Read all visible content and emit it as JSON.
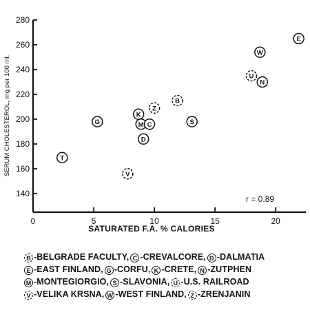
{
  "chart_data": {
    "type": "scatter",
    "title": "",
    "xlabel": "SATURATED F.A. % CALORIES",
    "ylabel": "SERUM CHOLESTEROL, mg per 100 ml.",
    "xlim": [
      0,
      23
    ],
    "ylim": [
      125,
      280
    ],
    "xticks": [
      0,
      5,
      10,
      15,
      20
    ],
    "yticks": [
      140,
      160,
      180,
      200,
      220,
      240,
      260,
      280
    ],
    "grid": false,
    "annotation": "r = 0.89",
    "points": [
      {
        "code": "T",
        "x": 2.4,
        "y": 169,
        "dashed": false
      },
      {
        "code": "G",
        "x": 5.3,
        "y": 198,
        "dashed": false
      },
      {
        "code": "V",
        "x": 7.8,
        "y": 156,
        "dashed": true
      },
      {
        "code": "K",
        "x": 8.7,
        "y": 204,
        "dashed": false
      },
      {
        "code": "M",
        "x": 8.9,
        "y": 196,
        "dashed": false
      },
      {
        "code": "D",
        "x": 9.1,
        "y": 184,
        "dashed": false
      },
      {
        "code": "C",
        "x": 9.6,
        "y": 196,
        "dashed": false
      },
      {
        "code": "Z",
        "x": 10.0,
        "y": 209,
        "dashed": true
      },
      {
        "code": "B",
        "x": 11.9,
        "y": 215,
        "dashed": true
      },
      {
        "code": "S",
        "x": 13.1,
        "y": 198,
        "dashed": false
      },
      {
        "code": "U",
        "x": 18.0,
        "y": 235,
        "dashed": true
      },
      {
        "code": "W",
        "x": 18.7,
        "y": 254,
        "dashed": false
      },
      {
        "code": "N",
        "x": 18.9,
        "y": 230,
        "dashed": false
      },
      {
        "code": "E",
        "x": 21.9,
        "y": 265,
        "dashed": false
      }
    ]
  },
  "legend": {
    "rows": [
      [
        {
          "code": "B",
          "name": "-BELGRADE FACULTY,",
          "dashed": true
        },
        {
          "code": "C",
          "name": "-CREVALCORE,",
          "dashed": false
        },
        {
          "code": "D",
          "name": "-DALMATIA",
          "dashed": false
        }
      ],
      [
        {
          "code": "E",
          "name": "-EAST FINLAND,",
          "dashed": false
        },
        {
          "code": "G",
          "name": "-CORFU,",
          "dashed": false
        },
        {
          "code": "K",
          "name": "-CRETE,",
          "dashed": false
        },
        {
          "code": "N",
          "name": "-ZUTPHEN",
          "dashed": false
        }
      ],
      [
        {
          "code": "M",
          "name": "-MONTEGIORGIO,",
          "dashed": false
        },
        {
          "code": "S",
          "name": "-SLAVONIA,",
          "dashed": false
        },
        {
          "code": "U",
          "name": "-U.S. RAILROAD",
          "dashed": true
        }
      ],
      [
        {
          "code": "V",
          "name": "-VELIKA KRSNA,",
          "dashed": true
        },
        {
          "code": "W",
          "name": "-WEST FINLAND,",
          "dashed": false
        },
        {
          "code": "Z",
          "name": "-ZRENJANIN",
          "dashed": true
        }
      ]
    ]
  }
}
